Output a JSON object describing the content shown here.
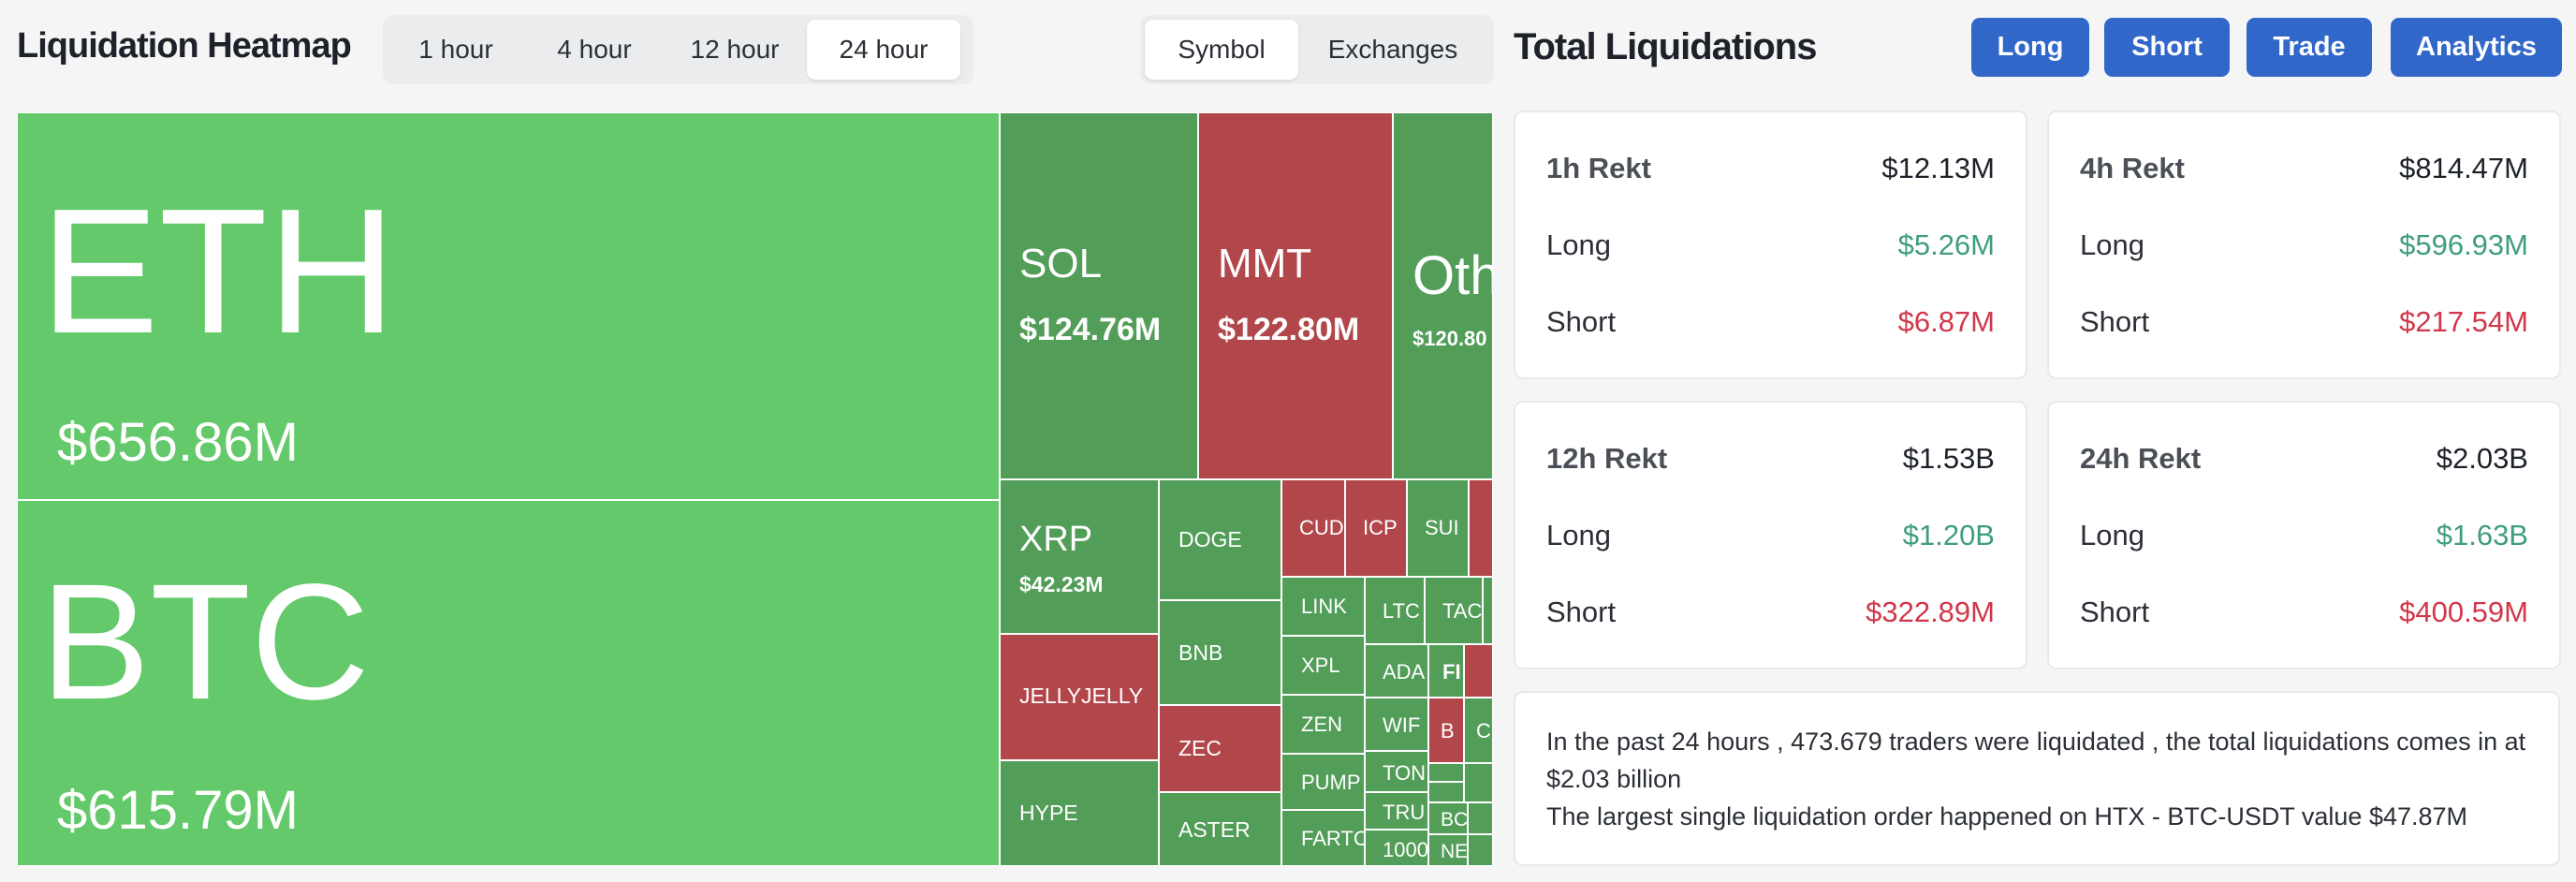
{
  "heatmap": {
    "title": "Liquidation Heatmap",
    "timeframes": [
      "1 hour",
      "4 hour",
      "12 hour",
      "24 hour"
    ],
    "active_timeframe": "24 hour",
    "modes": [
      "Symbol",
      "Exchanges"
    ],
    "active_mode": "Symbol",
    "tiles": {
      "eth": {
        "name": "ETH",
        "value": "$656.86M",
        "status": "long"
      },
      "btc": {
        "name": "BTC",
        "value": "$615.79M",
        "status": "long"
      },
      "sol": {
        "name": "SOL",
        "value": "$124.76M",
        "status": "long"
      },
      "mmt": {
        "name": "MMT",
        "value": "$122.80M",
        "status": "short"
      },
      "oth": {
        "name": "Oth",
        "value": "$120.80",
        "status": "long"
      },
      "xrp": {
        "name": "XRP",
        "value": "$42.23M",
        "status": "long"
      },
      "jellyjelly": {
        "name": "JELLYJELLY",
        "status": "short"
      },
      "hype": {
        "name": "HYPE",
        "status": "long"
      },
      "doge": {
        "name": "DOGE",
        "status": "long"
      },
      "bnb": {
        "name": "BNB",
        "status": "long"
      },
      "zec": {
        "name": "ZEC",
        "status": "short"
      },
      "aster": {
        "name": "ASTER",
        "status": "long"
      },
      "cud": {
        "name": "CUD",
        "status": "short"
      },
      "icp": {
        "name": "ICP",
        "status": "short"
      },
      "sui": {
        "name": "SUI",
        "status": "long"
      },
      "link": {
        "name": "LINK",
        "status": "long"
      },
      "xpl": {
        "name": "XPL",
        "status": "long"
      },
      "zen": {
        "name": "ZEN",
        "status": "long"
      },
      "pump": {
        "name": "PUMP",
        "status": "long"
      },
      "farto": {
        "name": "FARTC",
        "status": "long"
      },
      "ltc": {
        "name": "LTC",
        "status": "long"
      },
      "tac": {
        "name": "TAC",
        "status": "long"
      },
      "ada": {
        "name": "ADA",
        "status": "long"
      },
      "wif": {
        "name": "WIF",
        "status": "long"
      },
      "ton": {
        "name": "TON",
        "status": "long"
      },
      "tru": {
        "name": "TRU",
        "status": "long"
      },
      "n1000": {
        "name": "1000",
        "status": "long"
      },
      "fi": {
        "name": "FI",
        "status": "long"
      },
      "b": {
        "name": "B",
        "status": "short"
      },
      "c": {
        "name": "C",
        "status": "long"
      },
      "bc": {
        "name": "BC",
        "status": "long"
      },
      "ne": {
        "name": "NE",
        "status": "long"
      }
    },
    "colors": {
      "long_large": "#64c96b",
      "long": "#529d58",
      "short": "#b2474b"
    }
  },
  "total": {
    "title": "Total Liquidations",
    "actions": [
      "Long",
      "Short",
      "Trade",
      "Analytics"
    ],
    "cards": [
      {
        "label": "1h Rekt",
        "total": "$12.13M",
        "long_label": "Long",
        "long": "$5.26M",
        "short_label": "Short",
        "short": "$6.87M"
      },
      {
        "label": "4h Rekt",
        "total": "$814.47M",
        "long_label": "Long",
        "long": "$596.93M",
        "short_label": "Short",
        "short": "$217.54M"
      },
      {
        "label": "12h Rekt",
        "total": "$1.53B",
        "long_label": "Long",
        "long": "$1.20B",
        "short_label": "Short",
        "short": "$322.89M"
      },
      {
        "label": "24h Rekt",
        "total": "$2.03B",
        "long_label": "Long",
        "long": "$1.63B",
        "short_label": "Short",
        "short": "$400.59M"
      }
    ],
    "summary_line1": "In the past 24 hours , 473.679 traders were liquidated , the total liquidations comes in at $2.03 billion",
    "summary_line2": "The largest single liquidation order happened on HTX - BTC-USDT value $47.87M",
    "colors": {
      "action": "#3067c9",
      "long": "#3f9e7a",
      "short": "#d1374a"
    }
  }
}
